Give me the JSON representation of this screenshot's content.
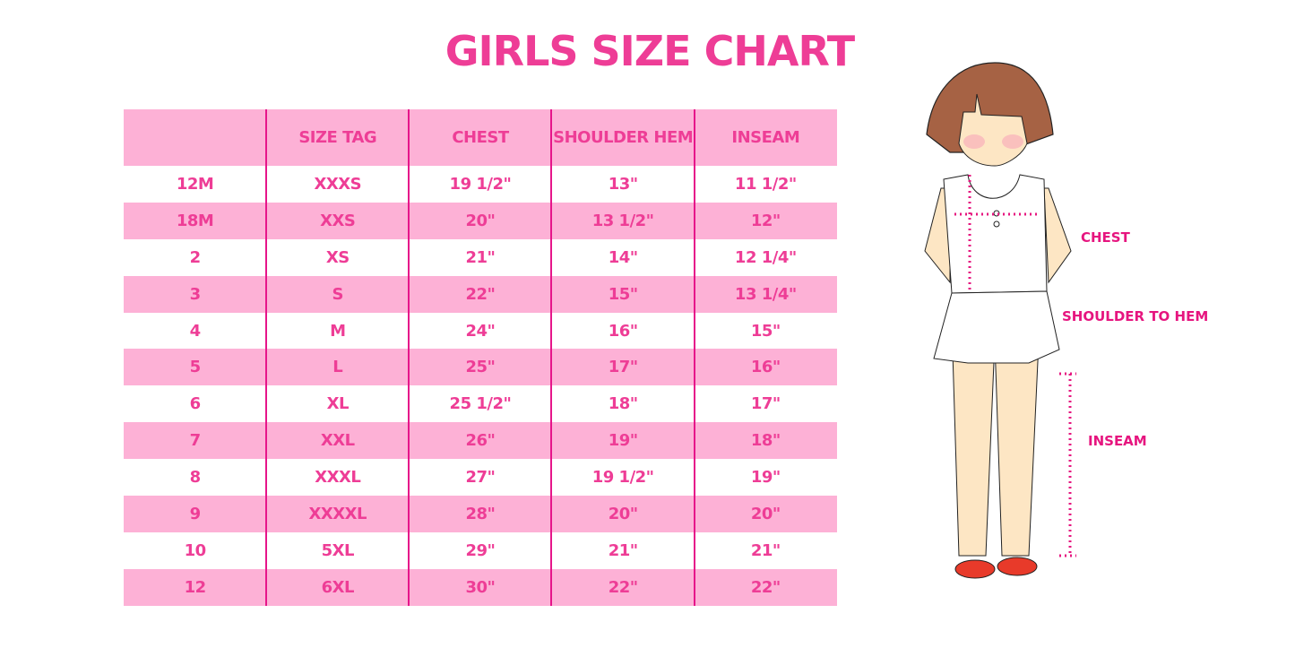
{
  "title": "GIRLS SIZE CHART",
  "table": {
    "headers": [
      "",
      "SIZE TAG",
      "CHEST",
      "SHOULDER HEM",
      "INSEAM"
    ],
    "rows": [
      [
        "12M",
        "XXXS",
        "19 1/2\"",
        "13\"",
        "11 1/2\""
      ],
      [
        "18M",
        "XXS",
        "20\"",
        "13 1/2\"",
        "12\""
      ],
      [
        "2",
        "XS",
        "21\"",
        "14\"",
        "12 1/4\""
      ],
      [
        "3",
        "S",
        "22\"",
        "15\"",
        "13 1/4\""
      ],
      [
        "4",
        "M",
        "24\"",
        "16\"",
        "15\""
      ],
      [
        "5",
        "L",
        "25\"",
        "17\"",
        "16\""
      ],
      [
        "6",
        "XL",
        "25 1/2\"",
        "18\"",
        "17\""
      ],
      [
        "7",
        "XXL",
        "26\"",
        "19\"",
        "18\""
      ],
      [
        "8",
        "XXXL",
        "27\"",
        "19 1/2\"",
        "19\""
      ],
      [
        "9",
        "XXXXL",
        "28\"",
        "20\"",
        "20\""
      ],
      [
        "10",
        "5XL",
        "29\"",
        "21\"",
        "21\""
      ],
      [
        "12",
        "6XL",
        "30\"",
        "22\"",
        "22\""
      ]
    ]
  },
  "figure": {
    "labels": {
      "chest": "CHEST",
      "shoulder": "SHOULDER TO HEM",
      "inseam": "INSEAM"
    }
  },
  "colors": {
    "accent": "#ee3d96",
    "row_pink": "#fdb1d6",
    "divider": "#e6158a"
  }
}
